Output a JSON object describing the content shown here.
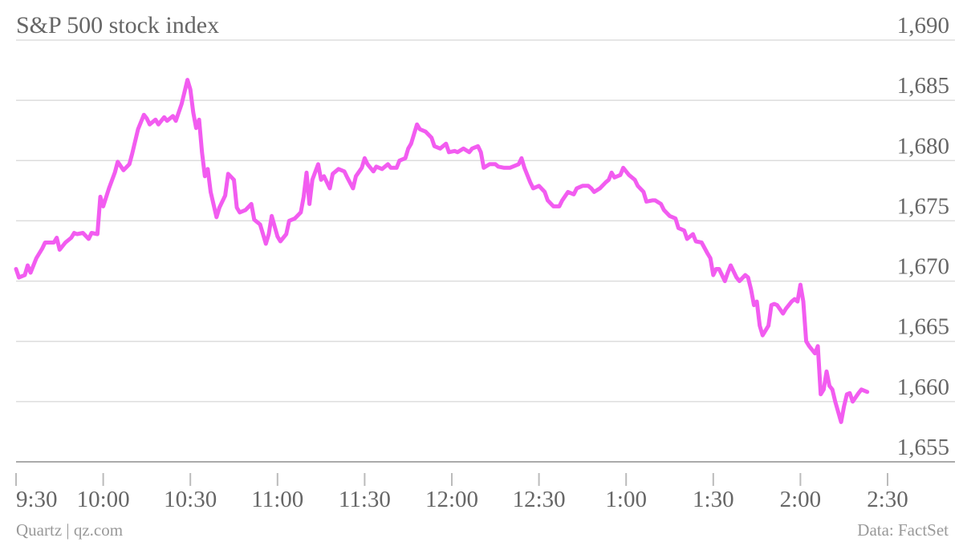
{
  "chart_data": {
    "type": "line",
    "title": "S&P 500 stock index",
    "source": "Quartz | qz.com",
    "credit": "Data: FactSet",
    "color": "#f25cf0",
    "grid": true,
    "xlim": [
      "9:30",
      "2:30"
    ],
    "xticks": [
      "9:30",
      "10:00",
      "10:30",
      "11:00",
      "11:30",
      "12:00",
      "12:30",
      "1:00",
      "1:30",
      "2:00",
      "2:30"
    ],
    "ylim": [
      1655,
      1690
    ],
    "yticks": [
      {
        "value": 1655,
        "label": "1,655"
      },
      {
        "value": 1660,
        "label": "1,660"
      },
      {
        "value": 1665,
        "label": "1,665"
      },
      {
        "value": 1670,
        "label": "1,670"
      },
      {
        "value": 1675,
        "label": "1,675"
      },
      {
        "value": 1680,
        "label": "1,680"
      },
      {
        "value": 1685,
        "label": "1,685"
      },
      {
        "value": 1690,
        "label": "1,690"
      }
    ],
    "x": [
      "9:30",
      "9:31",
      "9:33",
      "9:34",
      "9:35",
      "9:37",
      "9:39",
      "9:40",
      "9:43",
      "9:44",
      "9:45",
      "9:47",
      "9:49",
      "9:50",
      "9:51",
      "9:53",
      "9:55",
      "9:56",
      "9:58",
      "9:59",
      "10:00",
      "10:02",
      "10:04",
      "10:05",
      "10:07",
      "10:09",
      "10:10",
      "10:12",
      "10:14",
      "10:15",
      "10:16",
      "10:18",
      "10:19",
      "10:21",
      "10:22",
      "10:24",
      "10:25",
      "10:27",
      "10:29",
      "10:30",
      "10:31",
      "10:32",
      "10:33",
      "10:34",
      "10:35",
      "10:36",
      "10:37",
      "10:39",
      "10:40",
      "10:42",
      "10:43",
      "10:45",
      "10:46",
      "10:47",
      "10:49",
      "10:51",
      "10:52",
      "10:54",
      "10:56",
      "10:57",
      "10:58",
      "11:00",
      "11:01",
      "11:03",
      "11:04",
      "11:06",
      "11:08",
      "11:09",
      "11:10",
      "11:11",
      "11:12",
      "11:14",
      "11:15",
      "11:16",
      "11:18",
      "11:19",
      "11:21",
      "11:23",
      "11:24",
      "11:26",
      "11:27",
      "11:29",
      "11:30",
      "11:31",
      "11:33",
      "11:34",
      "11:36",
      "11:38",
      "11:39",
      "11:41",
      "11:42",
      "11:44",
      "11:45",
      "11:46",
      "11:48",
      "11:49",
      "11:51",
      "11:53",
      "11:54",
      "11:56",
      "11:58",
      "11:59",
      "12:01",
      "12:02",
      "12:04",
      "12:06",
      "12:07",
      "12:09",
      "12:10",
      "12:11",
      "12:13",
      "12:15",
      "12:16",
      "12:18",
      "12:20",
      "12:21",
      "12:23",
      "12:24",
      "12:25",
      "12:27",
      "12:28",
      "12:30",
      "12:32",
      "12:33",
      "12:35",
      "12:37",
      "12:38",
      "12:40",
      "12:42",
      "12:43",
      "12:45",
      "12:47",
      "12:48",
      "12:49",
      "12:51",
      "12:53",
      "12:54",
      "12:55",
      "12:56",
      "12:58",
      "12:59",
      "1:01",
      "1:03",
      "1:04",
      "1:06",
      "1:07",
      "1:09",
      "1:10",
      "1:12",
      "1:13",
      "1:15",
      "1:17",
      "1:18",
      "1:20",
      "1:21",
      "1:23",
      "1:24",
      "1:26",
      "1:28",
      "1:29",
      "1:30",
      "1:31",
      "1:32",
      "1:34",
      "1:35",
      "1:36",
      "1:38",
      "1:39",
      "1:41",
      "1:42",
      "1:43",
      "1:44",
      "1:45",
      "1:46",
      "1:47",
      "1:49",
      "1:50",
      "1:51",
      "1:52",
      "1:54",
      "1:55",
      "1:57",
      "1:58",
      "1:59",
      "2:00",
      "2:01",
      "2:02",
      "2:03",
      "2:05",
      "2:06",
      "2:07",
      "2:08",
      "2:09",
      "2:10",
      "2:11",
      "2:12",
      "2:14",
      "2:15",
      "2:16",
      "2:17",
      "2:18",
      "2:20",
      "2:21",
      "2:23"
    ],
    "values": [
      1671.0,
      1670.3,
      1670.5,
      1671.3,
      1670.7,
      1671.9,
      1672.7,
      1673.2,
      1673.2,
      1673.6,
      1672.6,
      1673.2,
      1673.6,
      1674.0,
      1673.9,
      1674.0,
      1673.5,
      1674.0,
      1673.9,
      1677.0,
      1676.2,
      1677.7,
      1679.0,
      1679.9,
      1679.2,
      1679.7,
      1680.6,
      1682.6,
      1683.8,
      1683.5,
      1683.0,
      1683.4,
      1683.0,
      1683.6,
      1683.3,
      1683.7,
      1683.3,
      1684.7,
      1686.7,
      1685.9,
      1684.0,
      1682.7,
      1683.4,
      1680.7,
      1678.7,
      1679.3,
      1677.4,
      1675.3,
      1676.1,
      1677.1,
      1678.9,
      1678.4,
      1676.1,
      1675.7,
      1675.9,
      1676.4,
      1675.1,
      1674.7,
      1673.1,
      1673.9,
      1675.4,
      1673.7,
      1673.3,
      1673.9,
      1675.0,
      1675.2,
      1675.7,
      1677.0,
      1679.0,
      1676.4,
      1678.4,
      1679.7,
      1678.4,
      1678.7,
      1677.7,
      1678.9,
      1679.3,
      1679.1,
      1678.6,
      1677.7,
      1678.7,
      1679.4,
      1680.2,
      1679.7,
      1679.1,
      1679.5,
      1679.3,
      1679.7,
      1679.4,
      1679.4,
      1680.0,
      1680.2,
      1681.0,
      1681.4,
      1683.0,
      1682.6,
      1682.4,
      1681.9,
      1681.2,
      1681.0,
      1681.4,
      1680.7,
      1680.8,
      1680.7,
      1681.0,
      1680.7,
      1681.0,
      1681.2,
      1680.7,
      1679.4,
      1679.7,
      1679.7,
      1679.5,
      1679.4,
      1679.4,
      1679.5,
      1679.7,
      1680.2,
      1679.4,
      1678.2,
      1677.7,
      1677.9,
      1677.4,
      1676.7,
      1676.2,
      1676.2,
      1676.7,
      1677.4,
      1677.2,
      1677.7,
      1677.9,
      1677.9,
      1677.7,
      1677.4,
      1677.7,
      1678.2,
      1678.4,
      1679.0,
      1678.6,
      1678.8,
      1679.4,
      1678.8,
      1678.4,
      1677.9,
      1677.4,
      1676.6,
      1676.7,
      1676.7,
      1676.4,
      1675.9,
      1675.4,
      1675.2,
      1674.4,
      1674.2,
      1673.5,
      1673.9,
      1673.3,
      1673.2,
      1672.3,
      1671.9,
      1670.5,
      1671.0,
      1671.0,
      1670.0,
      1670.7,
      1671.3,
      1670.3,
      1670.0,
      1670.5,
      1670.3,
      1669.3,
      1668.0,
      1668.3,
      1666.3,
      1665.5,
      1666.3,
      1668.0,
      1668.1,
      1668.0,
      1667.3,
      1667.7,
      1668.3,
      1668.5,
      1668.3,
      1669.7,
      1668.3,
      1665.0,
      1664.6,
      1664.0,
      1664.6,
      1660.6,
      1661.0,
      1662.5,
      1661.3,
      1661.0,
      1660.0,
      1658.3,
      1659.6,
      1660.6,
      1660.7,
      1660.0,
      1660.7,
      1661.0,
      1660.8
    ]
  }
}
